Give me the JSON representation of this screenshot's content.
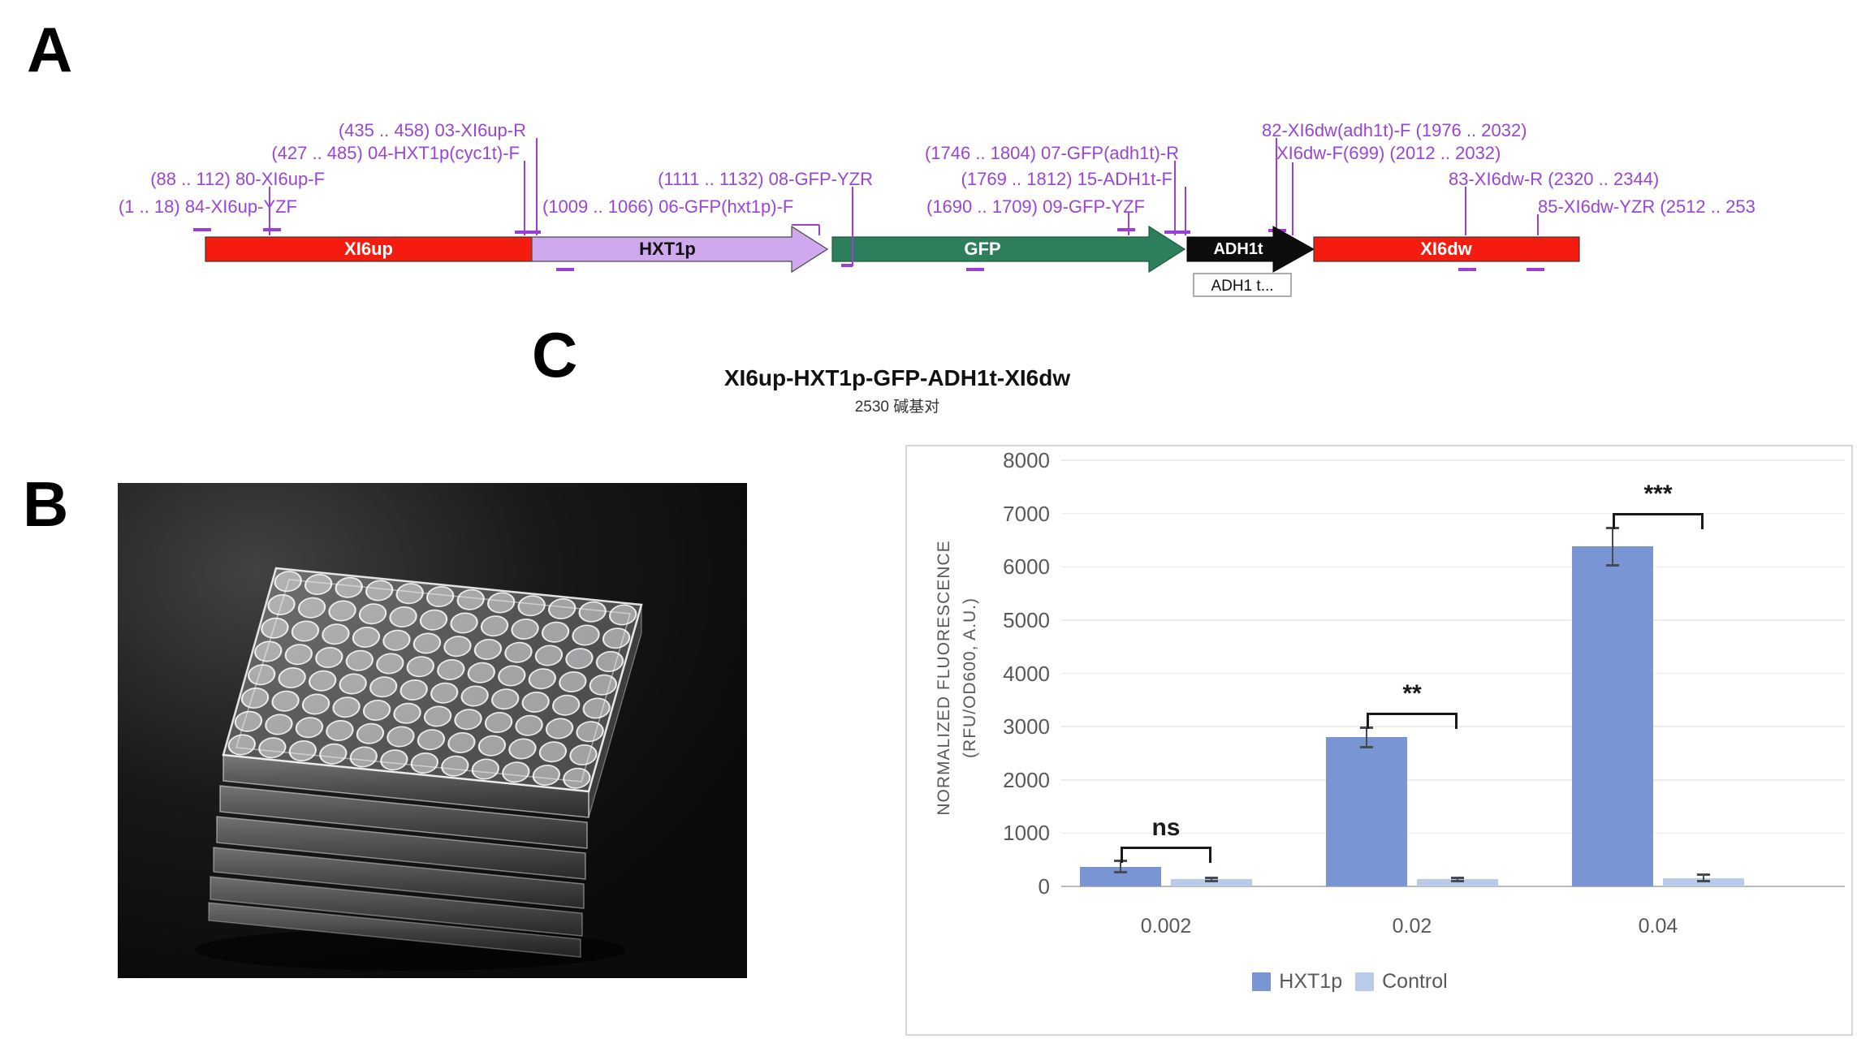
{
  "panels": {
    "a": "A",
    "b": "B",
    "c": "C"
  },
  "construct": {
    "title": "XI6up-HXT1p-GFP-ADH1t-XI6dw",
    "subtitle": "2530 碱基对",
    "adh1_box_label": "ADH1 t...",
    "accent_purple": "#9a46d2",
    "segments": [
      {
        "label": "XI6up",
        "color": "#f51c0f",
        "shape": "rect"
      },
      {
        "label": "HXT1p",
        "color": "#cfa9ee",
        "shape": "arrow"
      },
      {
        "label": "GFP",
        "color": "#2c7f5a",
        "shape": "arrow"
      },
      {
        "label": "ADH1t",
        "color": "#0d0d0d",
        "shape": "arrow"
      },
      {
        "label": "XI6dw",
        "color": "#f51c0f",
        "shape": "rect"
      }
    ],
    "primer_labels": [
      {
        "text": "(435 .. 458)  03-XI6up-R"
      },
      {
        "text": "(427 .. 485)  04-HXT1p(cyc1t)-F"
      },
      {
        "text": "(88 .. 112)  80-XI6up-F"
      },
      {
        "text": "(1 .. 18)  84-XI6up-YZF"
      },
      {
        "text": "(1009 .. 1066)  06-GFP(hxt1p)-F"
      },
      {
        "text": "(1111 .. 1132)  08-GFP-YZR"
      },
      {
        "text": "(1690 .. 1709)  09-GFP-YZF"
      },
      {
        "text": "(1746 .. 1804)  07-GFP(adh1t)-R"
      },
      {
        "text": "(1769 .. 1812)  15-ADH1t-F"
      },
      {
        "text": "82-XI6dw(adh1t)-F  (1976 .. 2032)"
      },
      {
        "text": "XI6dw-F(699)  (2012 .. 2032)"
      },
      {
        "text": "83-XI6dw-R  (2320 .. 2344)"
      },
      {
        "text": "85-XI6dw-YZR  (2512 .. 253"
      }
    ]
  },
  "chart_data": {
    "type": "bar",
    "categories": [
      "0.002",
      "0.02",
      "0.04"
    ],
    "series": [
      {
        "name": "HXT1p",
        "color": "#7a95d4",
        "values": [
          370,
          2800,
          6380
        ],
        "errors": [
          105,
          180,
          350
        ]
      },
      {
        "name": "Control",
        "color": "#b9cbe9",
        "values": [
          130,
          130,
          160
        ],
        "errors": [
          35,
          35,
          60
        ]
      }
    ],
    "significance": [
      "ns",
      "**",
      "***"
    ],
    "ylabel_line1": "NORMALIZED FLUORESCENCE",
    "ylabel_line2": "(RFU/OD600, A.U.)",
    "ylim": [
      0,
      8000
    ],
    "ytick_step": 1000,
    "grid": true,
    "legend_position": "bottom",
    "error_bar_color": "#474b52"
  }
}
